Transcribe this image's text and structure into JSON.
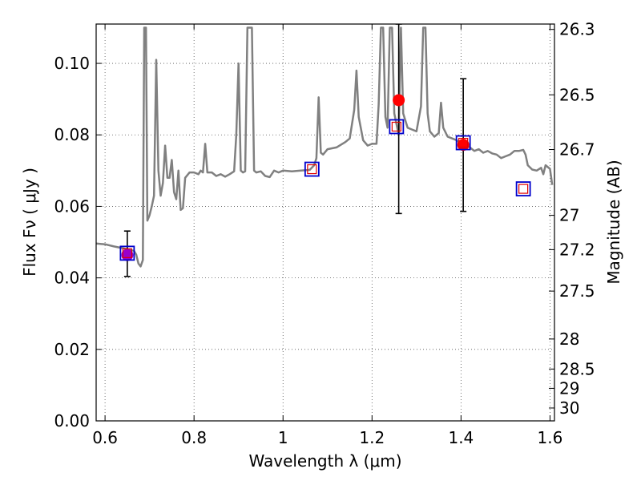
{
  "chart_data": {
    "type": "scatter",
    "xlabel": "Wavelength  λ (μm)",
    "ylabel": "Flux  Fν  ( μJy )",
    "y2label": "Magnitude (AB)",
    "xlim": [
      0.58,
      1.61
    ],
    "ylim": [
      0.0,
      0.111
    ],
    "grid": true,
    "x_ticks": [
      {
        "value": 0.6,
        "label": "0.6"
      },
      {
        "value": 0.8,
        "label": "0.8"
      },
      {
        "value": 1.0,
        "label": "1"
      },
      {
        "value": 1.2,
        "label": "1.2"
      },
      {
        "value": 1.4,
        "label": "1.4"
      },
      {
        "value": 1.6,
        "label": "1.6"
      }
    ],
    "y_ticks": [
      {
        "value": 0.0,
        "label": "0.00"
      },
      {
        "value": 0.02,
        "label": "0.02"
      },
      {
        "value": 0.04,
        "label": "0.04"
      },
      {
        "value": 0.06,
        "label": "0.06"
      },
      {
        "value": 0.08,
        "label": "0.08"
      },
      {
        "value": 0.1,
        "label": "0.10"
      }
    ],
    "y2_ticks": [
      {
        "label": "26.3",
        "flux": 0.1095
      },
      {
        "label": "26.5",
        "flux": 0.0912
      },
      {
        "label": "26.7",
        "flux": 0.0759
      },
      {
        "label": "27",
        "flux": 0.0575
      },
      {
        "label": "27.2",
        "flux": 0.0479
      },
      {
        "label": "27.5",
        "flux": 0.0363
      },
      {
        "label": "28",
        "flux": 0.0229
      },
      {
        "label": "28.5",
        "flux": 0.0145
      },
      {
        "label": "29",
        "flux": 0.0091
      },
      {
        "label": "30",
        "flux": 0.0036
      }
    ],
    "model_spectrum": {
      "color": "#808080",
      "points": [
        [
          0.58,
          0.0496
        ],
        [
          0.6,
          0.0494
        ],
        [
          0.62,
          0.0488
        ],
        [
          0.64,
          0.0483
        ],
        [
          0.66,
          0.0477
        ],
        [
          0.665,
          0.0476
        ],
        [
          0.67,
          0.0465
        ],
        [
          0.675,
          0.044
        ],
        [
          0.68,
          0.0432
        ],
        [
          0.685,
          0.045
        ],
        [
          0.688,
          0.11
        ],
        [
          0.692,
          0.11
        ],
        [
          0.695,
          0.056
        ],
        [
          0.7,
          0.0575
        ],
        [
          0.705,
          0.06
        ],
        [
          0.71,
          0.063
        ],
        [
          0.715,
          0.101
        ],
        [
          0.72,
          0.07
        ],
        [
          0.725,
          0.063
        ],
        [
          0.73,
          0.0665
        ],
        [
          0.735,
          0.077
        ],
        [
          0.74,
          0.068
        ],
        [
          0.745,
          0.068
        ],
        [
          0.75,
          0.073
        ],
        [
          0.755,
          0.064
        ],
        [
          0.76,
          0.062
        ],
        [
          0.765,
          0.07
        ],
        [
          0.77,
          0.059
        ],
        [
          0.775,
          0.0595
        ],
        [
          0.78,
          0.068
        ],
        [
          0.79,
          0.0695
        ],
        [
          0.8,
          0.0695
        ],
        [
          0.81,
          0.069
        ],
        [
          0.815,
          0.07
        ],
        [
          0.82,
          0.0695
        ],
        [
          0.825,
          0.0775
        ],
        [
          0.83,
          0.0695
        ],
        [
          0.84,
          0.0695
        ],
        [
          0.85,
          0.0685
        ],
        [
          0.86,
          0.069
        ],
        [
          0.87,
          0.0683
        ],
        [
          0.88,
          0.069
        ],
        [
          0.89,
          0.0698
        ],
        [
          0.895,
          0.08
        ],
        [
          0.9,
          0.1
        ],
        [
          0.905,
          0.07
        ],
        [
          0.91,
          0.0695
        ],
        [
          0.915,
          0.0698
        ],
        [
          0.92,
          0.11
        ],
        [
          0.93,
          0.11
        ],
        [
          0.935,
          0.07
        ],
        [
          0.94,
          0.0695
        ],
        [
          0.95,
          0.0698
        ],
        [
          0.96,
          0.0685
        ],
        [
          0.97,
          0.0682
        ],
        [
          0.98,
          0.07
        ],
        [
          0.99,
          0.0695
        ],
        [
          1.0,
          0.07
        ],
        [
          1.02,
          0.0698
        ],
        [
          1.04,
          0.07
        ],
        [
          1.06,
          0.0702
        ],
        [
          1.07,
          0.0715
        ],
        [
          1.075,
          0.0735
        ],
        [
          1.08,
          0.0905
        ],
        [
          1.085,
          0.075
        ],
        [
          1.09,
          0.0745
        ],
        [
          1.1,
          0.076
        ],
        [
          1.12,
          0.0765
        ],
        [
          1.14,
          0.078
        ],
        [
          1.15,
          0.079
        ],
        [
          1.16,
          0.087
        ],
        [
          1.165,
          0.098
        ],
        [
          1.17,
          0.085
        ],
        [
          1.18,
          0.0785
        ],
        [
          1.19,
          0.077
        ],
        [
          1.2,
          0.0775
        ],
        [
          1.21,
          0.0775
        ],
        [
          1.215,
          0.0885
        ],
        [
          1.22,
          0.11
        ],
        [
          1.225,
          0.11
        ],
        [
          1.23,
          0.085
        ],
        [
          1.235,
          0.082
        ],
        [
          1.24,
          0.11
        ],
        [
          1.245,
          0.11
        ],
        [
          1.25,
          0.086
        ],
        [
          1.26,
          0.08
        ],
        [
          1.265,
          0.11
        ],
        [
          1.27,
          0.086
        ],
        [
          1.28,
          0.082
        ],
        [
          1.29,
          0.0815
        ],
        [
          1.3,
          0.081
        ],
        [
          1.31,
          0.088
        ],
        [
          1.315,
          0.11
        ],
        [
          1.32,
          0.11
        ],
        [
          1.325,
          0.086
        ],
        [
          1.33,
          0.081
        ],
        [
          1.34,
          0.0795
        ],
        [
          1.35,
          0.0805
        ],
        [
          1.355,
          0.089
        ],
        [
          1.36,
          0.082
        ],
        [
          1.37,
          0.0795
        ],
        [
          1.38,
          0.079
        ],
        [
          1.39,
          0.0785
        ],
        [
          1.4,
          0.0775
        ],
        [
          1.41,
          0.077
        ],
        [
          1.42,
          0.0765
        ],
        [
          1.43,
          0.0755
        ],
        [
          1.44,
          0.076
        ],
        [
          1.45,
          0.075
        ],
        [
          1.46,
          0.0755
        ],
        [
          1.47,
          0.0748
        ],
        [
          1.48,
          0.0745
        ],
        [
          1.49,
          0.0735
        ],
        [
          1.5,
          0.074
        ],
        [
          1.51,
          0.0745
        ],
        [
          1.52,
          0.0755
        ],
        [
          1.53,
          0.0755
        ],
        [
          1.54,
          0.0758
        ],
        [
          1.545,
          0.0745
        ],
        [
          1.55,
          0.0715
        ],
        [
          1.56,
          0.0703
        ],
        [
          1.57,
          0.07
        ],
        [
          1.58,
          0.0708
        ],
        [
          1.585,
          0.069
        ],
        [
          1.59,
          0.0715
        ],
        [
          1.6,
          0.0705
        ],
        [
          1.605,
          0.066
        ]
      ]
    },
    "synthetic_photometry": {
      "marker": "open-square",
      "outer_color": "#0000cc",
      "inner_color": "#e00000",
      "points": [
        [
          0.65,
          0.0469
        ],
        [
          1.065,
          0.0704
        ],
        [
          1.255,
          0.0823
        ],
        [
          1.405,
          0.0778
        ],
        [
          1.54,
          0.0649
        ]
      ]
    },
    "observed_photometry": {
      "marker": "filled-circle",
      "color": "#ff0000",
      "purple_color": "#9900cc",
      "points": [
        {
          "x": 0.65,
          "y": 0.0464,
          "err_low": 0.0404,
          "err_high": 0.0531,
          "color": "#9900cc"
        },
        {
          "x": 1.26,
          "y": 0.0897,
          "err_low": 0.058,
          "err_high": 0.111,
          "color": "#ff0000"
        },
        {
          "x": 1.405,
          "y": 0.0772,
          "err_low": 0.0586,
          "err_high": 0.0957,
          "color": "#ff0000"
        }
      ]
    }
  }
}
